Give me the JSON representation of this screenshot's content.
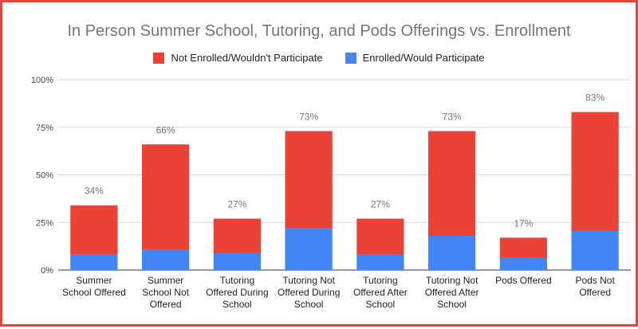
{
  "chart_data": {
    "type": "bar",
    "stacked": true,
    "title": "In Person Summer School, Tutoring, and Pods Offerings vs. Enrollment",
    "categories": [
      [
        "Summer",
        "School Offered"
      ],
      [
        "Summer",
        "School Not",
        "Offered"
      ],
      [
        "Tutoring",
        "Offered During",
        "School"
      ],
      [
        "Tutoring Not",
        "Offered During",
        "School"
      ],
      [
        "Tutoring",
        "Offered After",
        "School"
      ],
      [
        "Tutoring Not",
        "Offered After",
        "School"
      ],
      [
        "Pods Offered"
      ],
      [
        "Pods Not",
        "Offered"
      ]
    ],
    "series": [
      {
        "name": "Enrolled/Would Participate",
        "color": "#4285f4",
        "values": [
          8,
          10.5,
          9,
          22,
          8,
          18,
          6.5,
          20.5
        ]
      },
      {
        "name": "Not Enrolled/Wouldn't Participate",
        "color": "#ea4335",
        "values": [
          26,
          55.5,
          18,
          51,
          19,
          55,
          10.5,
          62.5
        ]
      }
    ],
    "totals": [
      34,
      66,
      27,
      73,
      27,
      73,
      17,
      83
    ],
    "total_labels": [
      "34%",
      "66%",
      "27%",
      "73%",
      "27%",
      "73%",
      "17%",
      "83%"
    ],
    "ylim": [
      0,
      100
    ],
    "yticks": [
      0,
      25,
      50,
      75,
      100
    ],
    "ytick_labels": [
      "0%",
      "25%",
      "50%",
      "75%",
      "100%"
    ],
    "grid": true,
    "legend_position": "top",
    "legend": [
      {
        "label": "Not Enrolled/Wouldn't Participate",
        "color": "#ea4335"
      },
      {
        "label": "Enrolled/Would Participate",
        "color": "#4285f4"
      }
    ]
  }
}
